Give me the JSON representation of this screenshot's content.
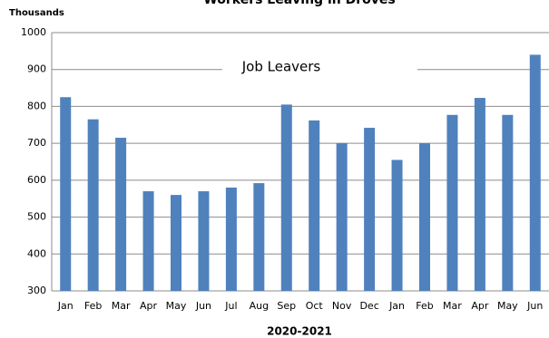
{
  "chart_data": {
    "type": "bar",
    "title": "Workers Leaving in Droves",
    "y_axis_label": "Thousands",
    "x_axis_label": "2020-2021",
    "annotation": "Job Leavers",
    "categories": [
      "Jan",
      "Feb",
      "Mar",
      "Apr",
      "May",
      "Jun",
      "Jul",
      "Aug",
      "Sep",
      "Oct",
      "Nov",
      "Dec",
      "Jan",
      "Feb",
      "Mar",
      "Apr",
      "May",
      "Jun"
    ],
    "values": [
      825,
      765,
      715,
      570,
      560,
      570,
      580,
      592,
      805,
      762,
      700,
      742,
      655,
      700,
      777,
      823,
      777,
      940
    ],
    "color": "#4f81bd",
    "ylim": [
      300,
      1000
    ],
    "yticks": [
      300,
      400,
      500,
      600,
      700,
      800,
      900,
      1000
    ],
    "grid": true
  }
}
